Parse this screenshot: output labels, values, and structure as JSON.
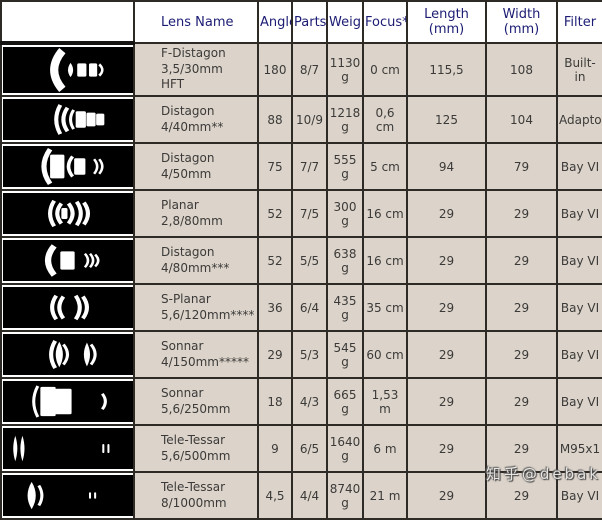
{
  "colors": {
    "header_text": "#1c1c74",
    "row_background": "#dcd4cb",
    "cell_border": "#2e2a26",
    "diagram_background": "#000000",
    "diagram_foreground": "#ffffff",
    "body_text": "#3b3a38"
  },
  "watermark": {
    "text": "知乎@debak"
  },
  "table": {
    "columns": [
      "Lens Name",
      "Angle",
      "Parts",
      "Weight",
      "Focus*",
      "Length (mm)",
      "Width (mm)",
      "Filter"
    ],
    "diagram_icon": "lens-cross-section-icon",
    "rows": [
      {
        "name": "F-Distagon\n3,5/30mm\nHFT",
        "angle": "180",
        "parts": "8/7",
        "weight": "1130 g",
        "focus": "0 cm",
        "length": "115,5",
        "width": "108",
        "filter": "Built-in",
        "diagram": [
          [
            "arcl",
            50,
            8,
            38,
            8
          ],
          [
            "lens",
            66,
            5,
            14
          ],
          [
            "rect",
            77,
            9,
            13
          ],
          [
            "rect",
            88,
            8,
            13
          ],
          [
            "arcr",
            97,
            3,
            11,
            2.5
          ]
        ]
      },
      {
        "name": "Distagon\n4/40mm**",
        "angle": "88",
        "parts": "10/9",
        "weight": "1218 g",
        "focus": "0,6 cm",
        "length": "125",
        "width": "104",
        "filter": "Adaptor",
        "diagram": [
          [
            "arcl",
            52,
            4,
            32,
            4
          ],
          [
            "arcl",
            59,
            4,
            26,
            4
          ],
          [
            "arcl",
            66,
            3,
            21,
            3
          ],
          [
            "rect",
            76,
            10,
            18
          ],
          [
            "rect",
            86,
            9,
            15
          ],
          [
            "rect",
            95,
            8,
            13
          ]
        ]
      },
      {
        "name": "Distagon\n4/50mm",
        "angle": "75",
        "parts": "7/7",
        "weight": "555 g",
        "focus": "5 cm",
        "length": "94",
        "width": "79",
        "filter": "Bay VI",
        "diagram": [
          [
            "arcl",
            40,
            6,
            38,
            5
          ],
          [
            "rect",
            53,
            14,
            26
          ],
          [
            "arcl",
            64,
            4,
            22,
            3.5
          ],
          [
            "rect",
            75,
            11,
            18
          ],
          [
            "arcr",
            92,
            3,
            16,
            2.5
          ],
          [
            "arcr",
            97,
            3,
            16,
            2.5
          ]
        ]
      },
      {
        "name": "Planar\n2,8/80mm",
        "angle": "52",
        "parts": "7/5",
        "weight": "300 g",
        "focus": "16 cm",
        "length": "29",
        "width": "29",
        "filter": "Bay VI",
        "diagram": [
          [
            "arcl",
            46,
            4,
            28,
            4
          ],
          [
            "arcl",
            53,
            4,
            22,
            4
          ],
          [
            "rect",
            60,
            6,
            12
          ],
          [
            "arcr",
            68,
            4,
            22,
            4
          ],
          [
            "arcr",
            76,
            4,
            26,
            4
          ],
          [
            "arcr",
            83,
            4,
            24,
            4
          ]
        ]
      },
      {
        "name": "Distagon\n4/80mm***",
        "angle": "52",
        "parts": "5/5",
        "weight": "638 g",
        "focus": "16 cm",
        "length": "29",
        "width": "29",
        "filter": "Bay VI",
        "diagram": [
          [
            "arcl",
            44,
            6,
            32,
            6
          ],
          [
            "rect",
            63,
            14,
            20
          ],
          [
            "arcr",
            83,
            3,
            15,
            2.5
          ],
          [
            "arcr",
            88,
            3,
            15,
            2.5
          ],
          [
            "arcr",
            93,
            3,
            13,
            2.5
          ]
        ]
      },
      {
        "name": "S-Planar\n5,6/120mm****",
        "angle": "36",
        "parts": "6/4",
        "weight": "435 g",
        "focus": "35 cm",
        "length": "29",
        "width": "29",
        "filter": "Bay VI",
        "diagram": [
          [
            "arcl",
            48,
            4,
            26,
            4
          ],
          [
            "arcl",
            55,
            4,
            24,
            4
          ],
          [
            "arcr",
            75,
            4,
            26,
            4
          ],
          [
            "arcr",
            82,
            4,
            24,
            4
          ]
        ]
      },
      {
        "name": "Sonnar\n4/150mm*****",
        "angle": "29",
        "parts": "5/3",
        "weight": "545 g",
        "focus": "60 cm",
        "length": "29",
        "width": "29",
        "filter": "Bay VI",
        "diagram": [
          [
            "arcl",
            47,
            4,
            30,
            4
          ],
          [
            "lens",
            55,
            7,
            28
          ],
          [
            "arcr",
            63,
            4,
            22,
            3
          ],
          [
            "lens",
            82,
            6,
            26
          ],
          [
            "arcr",
            90,
            4,
            22,
            3
          ]
        ]
      },
      {
        "name": "Sonnar\n5,6/250mm",
        "angle": "18",
        "parts": "4/3",
        "weight": "665 g",
        "focus": "1,53 m",
        "length": "29",
        "width": "29",
        "filter": "Bay VI",
        "diagram": [
          [
            "arcl",
            30,
            4,
            34,
            3
          ],
          [
            "rect",
            44,
            15,
            32
          ],
          [
            "rect",
            59,
            16,
            28
          ],
          [
            "arcr",
            100,
            3,
            17,
            3
          ]
        ]
      },
      {
        "name": "Tele-Tessar\n5,6/500mm",
        "angle": "9",
        "parts": "6/5",
        "weight": "1640 g",
        "focus": "6 m",
        "length": "29",
        "width": "29",
        "filter": "M95x1",
        "diagram": [
          [
            "lens",
            12,
            4,
            28
          ],
          [
            "lens",
            19,
            4,
            28
          ],
          [
            "rect",
            98,
            2,
            10
          ],
          [
            "rect",
            103,
            2,
            10
          ]
        ]
      },
      {
        "name": "Tele-Tessar\n8/1000mm",
        "angle": "4,5",
        "parts": "4/4",
        "weight": "8740 g",
        "focus": "21 m",
        "length": "29",
        "width": "29",
        "filter": "Bay VI",
        "diagram": [
          [
            "lens",
            28,
            8,
            30
          ],
          [
            "arcr",
            38,
            3,
            22,
            3
          ],
          [
            "rect",
            85,
            2,
            7
          ],
          [
            "rect",
            90,
            2,
            7
          ]
        ]
      }
    ]
  }
}
